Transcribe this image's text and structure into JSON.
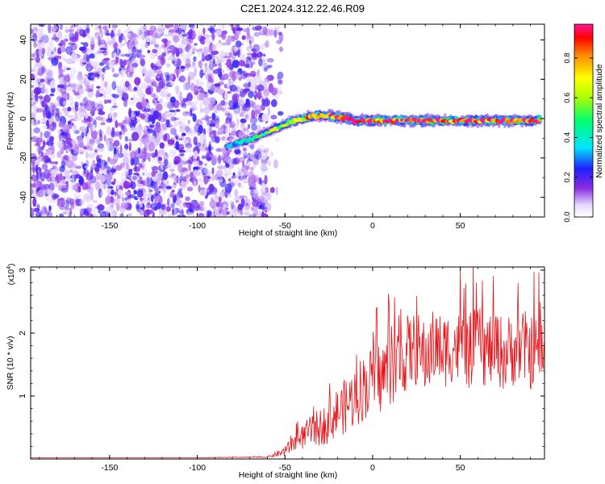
{
  "title": "C2E1.2024.312.22.46.R09",
  "chart_data": [
    {
      "type": "heatmap",
      "title": "C2E1.2024.312.22.46.R09",
      "xlabel": "Height of straight line (km)",
      "ylabel": "Frequency (Hz)",
      "xlim": [
        -195,
        98
      ],
      "ylim": [
        -50,
        48
      ],
      "x_ticks": [
        -150,
        -100,
        -50,
        0,
        50
      ],
      "x_tick_labels": [
        "-150",
        "-100",
        "-50",
        "0",
        "50"
      ],
      "y_ticks": [
        -40,
        -20,
        0,
        20,
        40
      ],
      "y_tick_labels": [
        "-40",
        "-20",
        "0",
        "20",
        "40"
      ],
      "colorbar": {
        "label": "Normalized spectral amplitude",
        "range": [
          0,
          0.97
        ],
        "ticks": [
          0.0,
          0.2,
          0.4,
          0.6,
          0.8
        ],
        "tick_labels": [
          "0.0",
          "0.2",
          "0.4",
          "0.6",
          "0.8"
        ]
      },
      "noise_region_x": [
        -195,
        -60
      ],
      "signal_track": {
        "x": [
          -83,
          -80,
          -75,
          -70,
          -65,
          -60,
          -55,
          -50,
          -45,
          -40,
          -35,
          -30,
          -25,
          -20,
          -15,
          -10,
          0,
          10,
          20,
          30,
          40,
          50,
          60,
          70,
          80,
          90,
          96
        ],
        "frequency": [
          -14,
          -13,
          -12,
          -11,
          -9,
          -7,
          -5,
          -3,
          -1,
          0,
          1,
          1.5,
          1.5,
          1,
          0,
          -1,
          -1,
          -1,
          -1,
          -1,
          -1,
          -1,
          -1,
          -1,
          -1,
          -1,
          -1
        ],
        "amplitude": [
          0.3,
          0.35,
          0.4,
          0.45,
          0.5,
          0.55,
          0.6,
          0.65,
          0.7,
          0.75,
          0.8,
          0.85,
          0.9,
          0.95,
          0.95,
          0.95,
          0.95,
          0.95,
          0.95,
          0.95,
          0.95,
          0.95,
          0.95,
          0.95,
          0.95,
          0.95,
          0.95
        ]
      }
    },
    {
      "type": "line",
      "xlabel": "Height of straight line (km)",
      "ylabel": "SNR (10 * v/v)",
      "y_multiplier_label": "(x10",
      "y_multiplier_exp": "4",
      "y_multiplier_close": ")",
      "xlim": [
        -195,
        98
      ],
      "ylim": [
        0,
        3.05
      ],
      "x_ticks": [
        -150,
        -100,
        -50,
        0,
        50
      ],
      "x_tick_labels": [
        "-150",
        "-100",
        "-50",
        "0",
        "50"
      ],
      "y_ticks": [
        1,
        2,
        3
      ],
      "y_tick_labels": [
        "1",
        "2",
        "3"
      ],
      "color": "#e8141a",
      "series": [
        {
          "x": [
            -195,
            -150,
            -100,
            -60,
            -50,
            -45,
            -40,
            -35,
            -30,
            -25,
            -20,
            -15,
            -10,
            -5,
            0,
            5,
            10,
            15,
            20,
            25,
            30,
            35,
            40,
            45,
            50,
            55,
            60,
            65,
            70,
            75,
            80,
            85,
            90,
            95,
            98
          ],
          "y": [
            0.02,
            0.02,
            0.02,
            0.03,
            0.12,
            0.25,
            0.35,
            0.45,
            0.5,
            0.6,
            0.75,
            0.85,
            1.0,
            1.15,
            1.25,
            1.3,
            1.45,
            1.5,
            1.7,
            1.75,
            1.6,
            1.8,
            1.7,
            1.8,
            1.75,
            1.7,
            1.85,
            1.7,
            1.8,
            1.65,
            1.75,
            1.8,
            1.7,
            1.75,
            1.7
          ],
          "noise_amplitude": [
            0,
            0,
            0,
            0.01,
            0.08,
            0.15,
            0.2,
            0.25,
            0.3,
            0.35,
            0.4,
            0.45,
            0.5,
            0.55,
            0.55,
            0.6,
            0.6,
            0.6,
            0.6,
            0.6,
            0.6,
            0.6,
            0.6,
            0.6,
            0.6,
            0.6,
            0.6,
            0.6,
            0.6,
            0.6,
            0.6,
            0.6,
            0.6,
            0.6,
            0.6
          ]
        }
      ]
    }
  ]
}
